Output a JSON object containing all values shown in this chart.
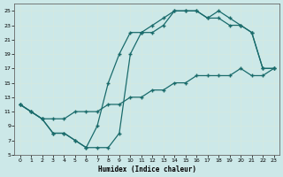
{
  "xlabel": "Humidex (Indice chaleur)",
  "bg_color": "#cce8e8",
  "grid_color": "#d4e8e0",
  "line_color": "#1a6b6b",
  "xlim": [
    -0.5,
    23.5
  ],
  "ylim": [
    5,
    26
  ],
  "yticks": [
    5,
    7,
    9,
    11,
    13,
    15,
    17,
    19,
    21,
    23,
    25
  ],
  "xticks": [
    0,
    1,
    2,
    3,
    4,
    5,
    6,
    7,
    8,
    9,
    10,
    11,
    12,
    13,
    14,
    15,
    16,
    17,
    18,
    19,
    20,
    21,
    22,
    23
  ],
  "line1_x": [
    0,
    1,
    2,
    3,
    4,
    5,
    6,
    7,
    8,
    9,
    10,
    11,
    12,
    13,
    14,
    15,
    16,
    17,
    18,
    19,
    20,
    21,
    22,
    23
  ],
  "line1_y": [
    12,
    11,
    10,
    8,
    8,
    7,
    6,
    6,
    6,
    8,
    19,
    22,
    22,
    23,
    25,
    25,
    25,
    24,
    25,
    24,
    23,
    22,
    17,
    17
  ],
  "line2_x": [
    0,
    1,
    2,
    3,
    4,
    5,
    6,
    7,
    8,
    9,
    10,
    11,
    12,
    13,
    14,
    15,
    16,
    17,
    18,
    19,
    20,
    21,
    22,
    23
  ],
  "line2_y": [
    12,
    11,
    10,
    8,
    8,
    7,
    6,
    9,
    15,
    19,
    22,
    22,
    23,
    24,
    25,
    25,
    25,
    24,
    24,
    23,
    23,
    22,
    17,
    17
  ],
  "line3_x": [
    0,
    1,
    2,
    3,
    4,
    5,
    6,
    7,
    8,
    9,
    10,
    11,
    12,
    13,
    14,
    15,
    16,
    17,
    18,
    19,
    20,
    21,
    22,
    23
  ],
  "line3_y": [
    12,
    11,
    10,
    10,
    10,
    11,
    11,
    11,
    12,
    12,
    13,
    13,
    14,
    14,
    15,
    15,
    16,
    16,
    16,
    16,
    17,
    16,
    16,
    17
  ]
}
